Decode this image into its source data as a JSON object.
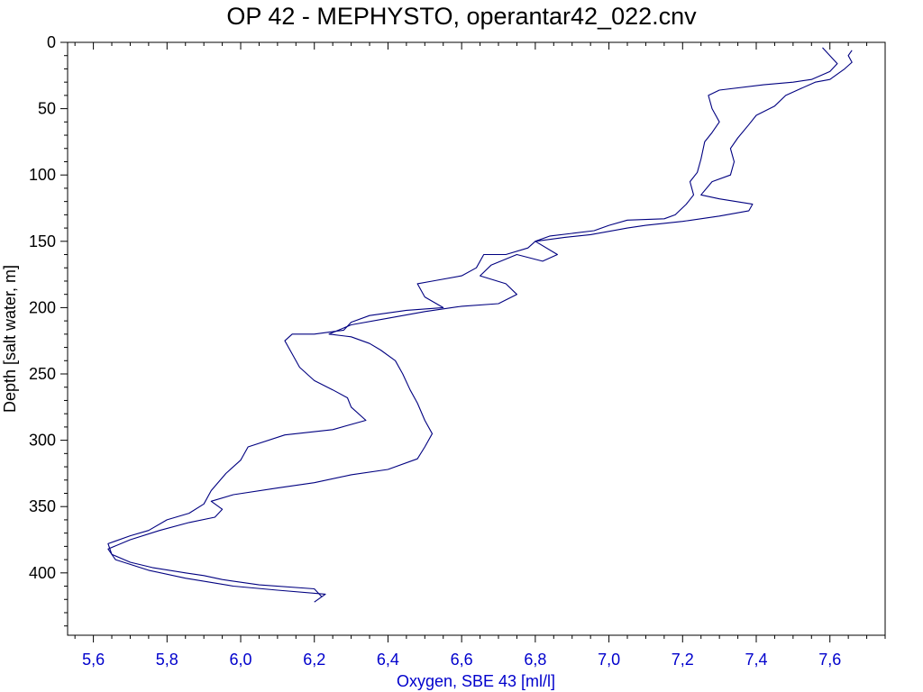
{
  "chart_data": {
    "type": "line",
    "title": "OP 42 - MEPHYSTO, operantar42_022.cnv",
    "xlabel": "Oxygen, SBE 43 [ml/l]",
    "ylabel": "Depth [salt water, m]",
    "xlim": [
      5.53,
      7.75
    ],
    "ylim": [
      0,
      447
    ],
    "y_inverted": true,
    "grid": false,
    "x_ticks": [
      5.6,
      5.8,
      6.0,
      6.2,
      6.4,
      6.6,
      6.8,
      7.0,
      7.2,
      7.4,
      7.6
    ],
    "x_tick_labels": [
      "5,6",
      "5,8",
      "6,0",
      "6,2",
      "6,4",
      "6,6",
      "6,8",
      "7,0",
      "7,2",
      "7,4",
      "7,6"
    ],
    "y_ticks": [
      0,
      50,
      100,
      150,
      200,
      250,
      300,
      350,
      400
    ],
    "y_tick_labels": [
      "0",
      "50",
      "100",
      "150",
      "200",
      "250",
      "300",
      "350",
      "400"
    ],
    "line_color": "#000080",
    "axis_label_color_x": "#0000cc",
    "series": [
      {
        "points": [
          [
            7.58,
            4
          ],
          [
            7.6,
            10
          ],
          [
            7.62,
            16
          ],
          [
            7.6,
            22
          ],
          [
            7.55,
            28
          ],
          [
            7.5,
            30
          ],
          [
            7.42,
            32
          ],
          [
            7.3,
            36
          ],
          [
            7.27,
            40
          ],
          [
            7.28,
            50
          ],
          [
            7.3,
            60
          ],
          [
            7.28,
            68
          ],
          [
            7.26,
            75
          ],
          [
            7.25,
            88
          ],
          [
            7.24,
            98
          ],
          [
            7.22,
            105
          ],
          [
            7.23,
            115
          ],
          [
            7.21,
            122
          ],
          [
            7.18,
            130
          ],
          [
            7.15,
            133
          ],
          [
            7.05,
            134
          ],
          [
            7.0,
            138
          ],
          [
            6.96,
            142
          ],
          [
            6.9,
            144
          ],
          [
            6.84,
            146
          ],
          [
            6.8,
            150
          ],
          [
            6.78,
            155
          ],
          [
            6.72,
            160
          ],
          [
            6.66,
            160
          ],
          [
            6.64,
            170
          ],
          [
            6.6,
            176
          ],
          [
            6.52,
            180
          ],
          [
            6.48,
            182
          ],
          [
            6.5,
            192
          ],
          [
            6.55,
            200
          ],
          [
            6.45,
            202
          ],
          [
            6.35,
            206
          ],
          [
            6.3,
            211
          ],
          [
            6.28,
            217
          ],
          [
            6.2,
            220
          ],
          [
            6.14,
            220
          ],
          [
            6.12,
            225
          ],
          [
            6.14,
            235
          ],
          [
            6.16,
            245
          ],
          [
            6.2,
            255
          ],
          [
            6.25,
            262
          ],
          [
            6.29,
            268
          ],
          [
            6.3,
            275
          ],
          [
            6.34,
            285
          ],
          [
            6.25,
            292
          ],
          [
            6.12,
            296
          ],
          [
            6.02,
            305
          ],
          [
            6.0,
            315
          ],
          [
            5.96,
            325
          ],
          [
            5.92,
            338
          ],
          [
            5.9,
            348
          ],
          [
            5.86,
            355
          ],
          [
            5.8,
            360
          ],
          [
            5.75,
            368
          ],
          [
            5.7,
            372
          ],
          [
            5.64,
            378
          ],
          [
            5.65,
            386
          ],
          [
            5.7,
            392
          ],
          [
            5.76,
            396
          ],
          [
            5.85,
            400
          ],
          [
            5.9,
            402
          ],
          [
            5.95,
            405
          ],
          [
            6.05,
            409
          ],
          [
            6.2,
            412
          ],
          [
            6.22,
            418
          ]
        ]
      },
      {
        "points": [
          [
            6.2,
            422
          ],
          [
            6.23,
            416
          ],
          [
            6.1,
            413
          ],
          [
            5.98,
            410
          ],
          [
            5.85,
            404
          ],
          [
            5.75,
            398
          ],
          [
            5.66,
            390
          ],
          [
            5.64,
            382
          ],
          [
            5.7,
            375
          ],
          [
            5.78,
            368
          ],
          [
            5.86,
            362
          ],
          [
            5.93,
            358
          ],
          [
            5.95,
            352
          ],
          [
            5.92,
            346
          ],
          [
            5.98,
            341
          ],
          [
            6.1,
            336
          ],
          [
            6.2,
            332
          ],
          [
            6.3,
            326
          ],
          [
            6.4,
            322
          ],
          [
            6.48,
            314
          ],
          [
            6.5,
            305
          ],
          [
            6.52,
            295
          ],
          [
            6.5,
            285
          ],
          [
            6.48,
            272
          ],
          [
            6.46,
            262
          ],
          [
            6.44,
            250
          ],
          [
            6.42,
            240
          ],
          [
            6.38,
            232
          ],
          [
            6.35,
            227
          ],
          [
            6.3,
            222
          ],
          [
            6.24,
            220
          ],
          [
            6.3,
            213
          ],
          [
            6.4,
            208
          ],
          [
            6.5,
            203
          ],
          [
            6.6,
            199
          ],
          [
            6.7,
            197
          ],
          [
            6.75,
            190
          ],
          [
            6.72,
            182
          ],
          [
            6.65,
            176
          ],
          [
            6.68,
            168
          ],
          [
            6.75,
            160
          ],
          [
            6.82,
            165
          ],
          [
            6.86,
            160
          ],
          [
            6.8,
            150
          ],
          [
            6.88,
            147
          ],
          [
            6.95,
            145
          ],
          [
            7.05,
            140
          ],
          [
            7.1,
            138
          ],
          [
            7.2,
            135
          ],
          [
            7.3,
            131
          ],
          [
            7.38,
            127
          ],
          [
            7.39,
            122
          ],
          [
            7.3,
            118
          ],
          [
            7.25,
            115
          ],
          [
            7.28,
            105
          ],
          [
            7.33,
            100
          ],
          [
            7.34,
            90
          ],
          [
            7.33,
            80
          ],
          [
            7.35,
            72
          ],
          [
            7.38,
            62
          ],
          [
            7.4,
            55
          ],
          [
            7.45,
            48
          ],
          [
            7.48,
            40
          ],
          [
            7.52,
            35
          ],
          [
            7.56,
            30
          ],
          [
            7.6,
            28
          ],
          [
            7.62,
            24
          ],
          [
            7.64,
            20
          ],
          [
            7.66,
            15
          ],
          [
            7.65,
            10
          ],
          [
            7.66,
            6
          ]
        ]
      }
    ]
  }
}
